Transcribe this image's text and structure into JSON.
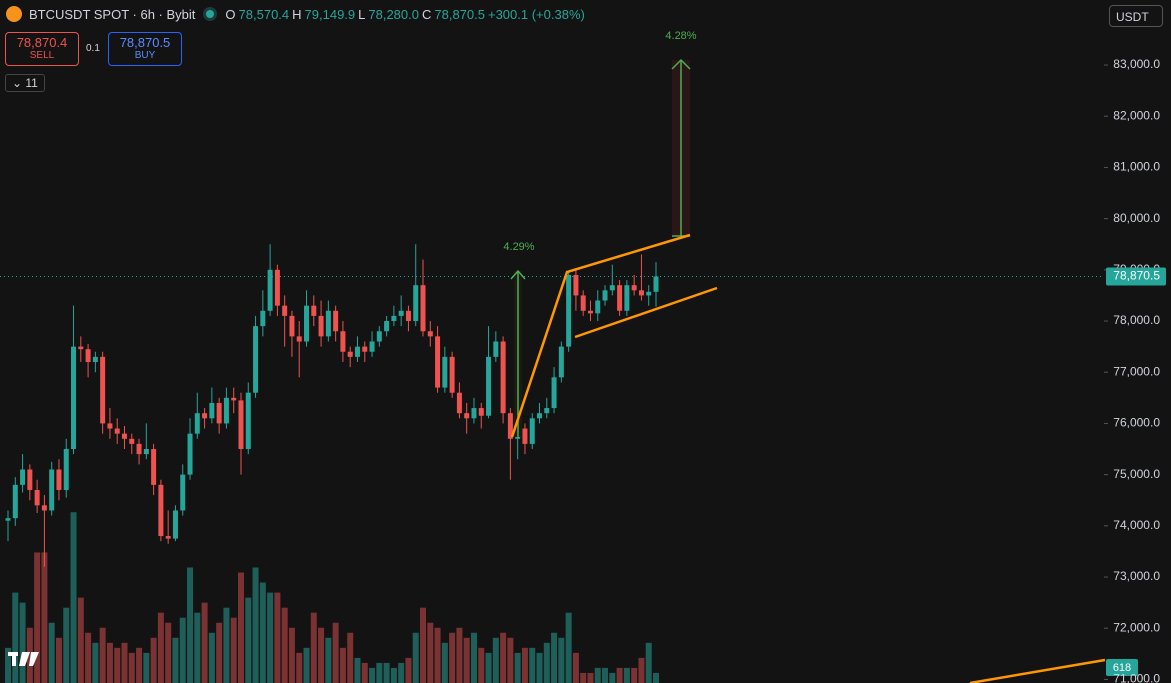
{
  "header": {
    "symbol": "BTCUSDT SPOT · 6h · Bybit",
    "o_label": "O",
    "open": "78,570.4",
    "h_label": "H",
    "high": "79,149.9",
    "l_label": "L",
    "low": "78,280.0",
    "c_label": "C",
    "close": "78,870.5",
    "change": "+300.1 (+0.38%)"
  },
  "trade": {
    "sell_price": "78,870.4",
    "sell_label": "SELL",
    "quantity": "0.1",
    "buy_price": "78,870.5",
    "buy_label": "BUY",
    "indicators_count": "11"
  },
  "currency": "USDT",
  "annotations": {
    "measure_1": "4.29%",
    "measure_2": "4.28%",
    "fib_tag": "618"
  },
  "chart_data": {
    "type": "candlestick",
    "up_color": "#26a69a",
    "down_color": "#ef5350",
    "up_volume_color": "#1f5f5a",
    "down_volume_color": "#7a3232",
    "ylim": [
      70930,
      84270
    ],
    "yticks": [
      {
        "value": 71000,
        "label": "71,000.0"
      },
      {
        "value": 72000,
        "label": "72,000.0"
      },
      {
        "value": 73000,
        "label": "73,000.0"
      },
      {
        "value": 74000,
        "label": "74,000.0"
      },
      {
        "value": 75000,
        "label": "75,000.0"
      },
      {
        "value": 76000,
        "label": "76,000.0"
      },
      {
        "value": 77000,
        "label": "77,000.0"
      },
      {
        "value": 78000,
        "label": "78,000.0"
      },
      {
        "value": 79000,
        "label": "79,000.0"
      },
      {
        "value": 80000,
        "label": "80,000.0"
      },
      {
        "value": 81000,
        "label": "81,000.0"
      },
      {
        "value": 82000,
        "label": "82,000.0"
      },
      {
        "value": 83000,
        "label": "83,000.0"
      }
    ],
    "last_price": {
      "value": 78870.5,
      "label": "78,870.5"
    },
    "vlim": [
      0,
      680
    ],
    "candles": [
      [
        74100,
        74300,
        73700,
        74150
      ],
      [
        74150,
        74950,
        74000,
        74800
      ],
      [
        74800,
        75400,
        74650,
        75100
      ],
      [
        75100,
        75200,
        74500,
        74700
      ],
      [
        74700,
        74900,
        74250,
        74400
      ],
      [
        74400,
        74600,
        73200,
        74300
      ],
      [
        74300,
        75250,
        74200,
        75100
      ],
      [
        75100,
        75300,
        74500,
        74700
      ],
      [
        74700,
        75700,
        74550,
        75500
      ],
      [
        75500,
        78300,
        75400,
        77500
      ],
      [
        77500,
        77700,
        77200,
        77450
      ],
      [
        77450,
        77550,
        76900,
        77200
      ],
      [
        77200,
        77400,
        77000,
        77300
      ],
      [
        77300,
        77400,
        75800,
        76000
      ],
      [
        76000,
        76300,
        75700,
        75900
      ],
      [
        75900,
        76100,
        75600,
        75800
      ],
      [
        75800,
        75950,
        75500,
        75700
      ],
      [
        75700,
        75800,
        75400,
        75600
      ],
      [
        75600,
        75700,
        75200,
        75400
      ],
      [
        75400,
        76000,
        75300,
        75500
      ],
      [
        75500,
        75600,
        74600,
        74800
      ],
      [
        74800,
        74900,
        73700,
        73800
      ],
      [
        73800,
        74300,
        73650,
        73750
      ],
      [
        73750,
        74400,
        73700,
        74300
      ],
      [
        74300,
        75200,
        74200,
        75000
      ],
      [
        75000,
        76100,
        74900,
        75800
      ],
      [
        75800,
        76600,
        75700,
        76200
      ],
      [
        76200,
        76300,
        75900,
        76100
      ],
      [
        76100,
        76700,
        76000,
        76400
      ],
      [
        76400,
        76500,
        75800,
        76000
      ],
      [
        76000,
        76700,
        75900,
        76500
      ],
      [
        76500,
        76700,
        76200,
        76450
      ],
      [
        76450,
        76600,
        75000,
        75500
      ],
      [
        75500,
        76800,
        75400,
        76600
      ],
      [
        76600,
        78100,
        76500,
        77900
      ],
      [
        77900,
        78600,
        77700,
        78200
      ],
      [
        78200,
        79500,
        78100,
        79000
      ],
      [
        79000,
        79100,
        78100,
        78300
      ],
      [
        78300,
        78500,
        77500,
        78100
      ],
      [
        78100,
        78200,
        77300,
        77700
      ],
      [
        77700,
        78000,
        76900,
        77600
      ],
      [
        77600,
        78600,
        77500,
        78300
      ],
      [
        78300,
        78500,
        77900,
        78100
      ],
      [
        78100,
        78400,
        77500,
        77700
      ],
      [
        77700,
        78400,
        77600,
        78200
      ],
      [
        78200,
        78300,
        77600,
        77800
      ],
      [
        77800,
        78000,
        77200,
        77400
      ],
      [
        77400,
        77500,
        77100,
        77300
      ],
      [
        77300,
        77700,
        77200,
        77500
      ],
      [
        77500,
        77600,
        77200,
        77400
      ],
      [
        77400,
        77800,
        77300,
        77600
      ],
      [
        77600,
        77900,
        77500,
        77800
      ],
      [
        77800,
        78100,
        77700,
        78000
      ],
      [
        78000,
        78300,
        77900,
        78100
      ],
      [
        78100,
        78500,
        77900,
        78200
      ],
      [
        78200,
        78300,
        77800,
        78000
      ],
      [
        78000,
        79500,
        77900,
        78700
      ],
      [
        78700,
        79200,
        77700,
        77800
      ],
      [
        77800,
        78000,
        77500,
        77700
      ],
      [
        77700,
        77900,
        76600,
        76700
      ],
      [
        76700,
        77500,
        76600,
        77300
      ],
      [
        77300,
        77400,
        76500,
        76600
      ],
      [
        76600,
        76800,
        76100,
        76200
      ],
      [
        76200,
        76400,
        75800,
        76100
      ],
      [
        76100,
        76500,
        76000,
        76300
      ],
      [
        76300,
        76400,
        75900,
        76150
      ],
      [
        76150,
        77900,
        76100,
        77300
      ],
      [
        77300,
        77800,
        77200,
        77600
      ],
      [
        77600,
        77700,
        76000,
        76200
      ],
      [
        76200,
        76300,
        74900,
        75700
      ],
      [
        75700,
        76000,
        75300,
        75900
      ],
      [
        75900,
        76000,
        75400,
        75600
      ],
      [
        75600,
        76200,
        75500,
        76100
      ],
      [
        76100,
        76400,
        76000,
        76200
      ],
      [
        76200,
        76500,
        76100,
        76300
      ],
      [
        76300,
        77100,
        76200,
        76900
      ],
      [
        76900,
        77600,
        76800,
        77500
      ],
      [
        77500,
        78950,
        77400,
        78900
      ],
      [
        78900,
        79000,
        78200,
        78500
      ],
      [
        78500,
        78600,
        78100,
        78200
      ],
      [
        78200,
        78400,
        78000,
        78150
      ],
      [
        78150,
        78600,
        78000,
        78400
      ],
      [
        78400,
        78700,
        78300,
        78600
      ],
      [
        78600,
        79100,
        78500,
        78700
      ],
      [
        78700,
        78800,
        78100,
        78200
      ],
      [
        78200,
        78800,
        78100,
        78700
      ],
      [
        78700,
        78900,
        78500,
        78600
      ],
      [
        78600,
        79300,
        78400,
        78500
      ],
      [
        78500,
        78700,
        78300,
        78570.4
      ],
      [
        78570.4,
        79149.9,
        78280,
        78870.5
      ]
    ],
    "volume": [
      35,
      90,
      80,
      55,
      130,
      130,
      60,
      45,
      75,
      170,
      85,
      50,
      40,
      55,
      40,
      35,
      40,
      30,
      35,
      30,
      45,
      70,
      60,
      45,
      65,
      115,
      70,
      80,
      50,
      60,
      75,
      65,
      110,
      85,
      115,
      100,
      90,
      90,
      75,
      55,
      30,
      35,
      70,
      55,
      45,
      60,
      35,
      50,
      25,
      20,
      15,
      20,
      20,
      15,
      20,
      25,
      50,
      75,
      60,
      55,
      40,
      50,
      55,
      45,
      50,
      35,
      30,
      45,
      50,
      45,
      30,
      35,
      35,
      30,
      40,
      50,
      45,
      70,
      30,
      10,
      10,
      15,
      15,
      10,
      15,
      15,
      15,
      25,
      40,
      10
    ]
  }
}
